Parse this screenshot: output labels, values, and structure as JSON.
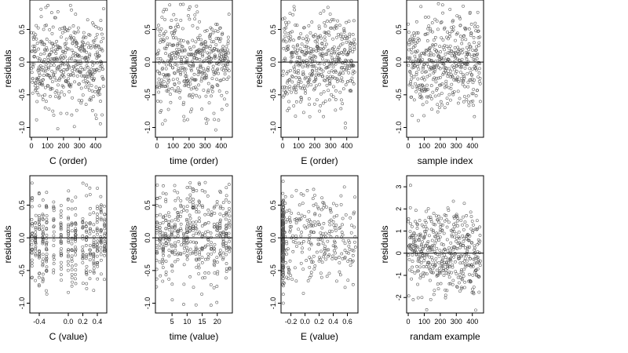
{
  "figure": {
    "layout": {
      "rows": 2,
      "cols": 4
    },
    "point_color": "#555555",
    "axis_color": "#000000"
  },
  "chart_data": [
    {
      "type": "scatter",
      "xlabel": "C (order)",
      "ylabel": "residuals",
      "xlim": [
        -10,
        470
      ],
      "ylim": [
        -1.15,
        0.95
      ],
      "xticks": [
        0,
        100,
        200,
        300,
        400
      ],
      "xtick_labels": [
        "0",
        "100",
        "200",
        "300",
        "400"
      ],
      "yticks": [
        -1.0,
        -0.5,
        0.0,
        0.5
      ],
      "ytick_labels": [
        "-1.0",
        "-0.5",
        "0.0",
        "0.5"
      ],
      "hline": 0,
      "points": {
        "n": 450,
        "x_pattern": "index",
        "x_min": 0,
        "x_max": 450,
        "y_min": -1.05,
        "y_max": 0.9,
        "y_spread": 0.35,
        "seed": 11
      }
    },
    {
      "type": "scatter",
      "xlabel": "time (order)",
      "ylabel": "residuals",
      "xlim": [
        -10,
        470
      ],
      "ylim": [
        -1.15,
        0.95
      ],
      "xticks": [
        0,
        100,
        200,
        300,
        400
      ],
      "xtick_labels": [
        "0",
        "100",
        "200",
        "300",
        "400"
      ],
      "yticks": [
        -1.0,
        -0.5,
        0.0,
        0.5
      ],
      "ytick_labels": [
        "-1.0",
        "-0.5",
        "0.0",
        "0.5"
      ],
      "hline": 0,
      "points": {
        "n": 450,
        "x_pattern": "index",
        "x_min": 0,
        "x_max": 450,
        "y_min": -1.05,
        "y_max": 0.9,
        "y_spread": 0.35,
        "seed": 23
      }
    },
    {
      "type": "scatter",
      "xlabel": "E (order)",
      "ylabel": "residuals",
      "xlim": [
        -10,
        470
      ],
      "ylim": [
        -1.15,
        0.95
      ],
      "xticks": [
        0,
        100,
        200,
        300,
        400
      ],
      "xtick_labels": [
        "0",
        "100",
        "200",
        "300",
        "400"
      ],
      "yticks": [
        -1.0,
        -0.5,
        0.0,
        0.5
      ],
      "ytick_labels": [
        "-1.0",
        "-0.5",
        "0.0",
        "0.5"
      ],
      "hline": 0,
      "points": {
        "n": 450,
        "x_pattern": "index",
        "x_min": 0,
        "x_max": 450,
        "y_min": -1.05,
        "y_max": 0.9,
        "y_spread": 0.35,
        "seed": 37
      }
    },
    {
      "type": "scatter",
      "xlabel": "sample index",
      "ylabel": "residuals",
      "xlim": [
        -10,
        470
      ],
      "ylim": [
        -1.15,
        0.95
      ],
      "xticks": [
        0,
        100,
        200,
        300,
        400
      ],
      "xtick_labels": [
        "0",
        "100",
        "200",
        "300",
        "400"
      ],
      "yticks": [
        -1.0,
        -0.5,
        0.0,
        0.5
      ],
      "ytick_labels": [
        "-1.0",
        "-0.5",
        "0.0",
        "0.5"
      ],
      "hline": 0,
      "points": {
        "n": 450,
        "x_pattern": "index",
        "x_min": 0,
        "x_max": 450,
        "y_min": -1.05,
        "y_max": 0.9,
        "y_spread": 0.35,
        "seed": 41
      }
    },
    {
      "type": "scatter",
      "xlabel": "C (value)",
      "ylabel": "residuals",
      "xlim": [
        -0.53,
        0.53
      ],
      "ylim": [
        -1.15,
        0.95
      ],
      "xticks": [
        -0.4,
        0.0,
        0.2,
        0.4
      ],
      "xtick_labels": [
        "-0.4",
        "0.0",
        "0.2",
        "0.4"
      ],
      "yticks": [
        -1.0,
        -0.5,
        0.0,
        0.5
      ],
      "ytick_labels": [
        "-1.0",
        "-0.5",
        "0.0",
        "0.5"
      ],
      "hline": 0,
      "points": {
        "n": 420,
        "x_pattern": "columns",
        "x_columns": [
          -0.5,
          -0.45,
          -0.4,
          -0.35,
          -0.3,
          -0.2,
          -0.1,
          0.0,
          0.05,
          0.1,
          0.2,
          0.25,
          0.3,
          0.35,
          0.4,
          0.45,
          0.5
        ],
        "x_jitter": 0.004,
        "y_min": -1.0,
        "y_max": 0.85,
        "y_spread": 0.35,
        "seed": 53
      }
    },
    {
      "type": "scatter",
      "xlabel": "time (value)",
      "ylabel": "residuals",
      "xlim": [
        -0.5,
        25
      ],
      "ylim": [
        -1.15,
        0.95
      ],
      "xticks": [
        5,
        10,
        15,
        20
      ],
      "xtick_labels": [
        "5",
        "10",
        "15",
        "20"
      ],
      "yticks": [
        -1.0,
        -0.5,
        0.0,
        0.5
      ],
      "ytick_labels": [
        "-1.0",
        "-0.5",
        "0.0",
        "0.5"
      ],
      "hline": 0,
      "points": {
        "n": 440,
        "x_pattern": "columns",
        "x_columns": [
          0,
          1,
          2,
          3,
          4,
          5,
          6,
          7,
          8,
          9,
          10,
          11,
          12,
          13,
          14,
          15,
          16,
          17,
          18,
          19,
          20,
          21,
          22,
          23,
          24
        ],
        "x_jitter": 0.15,
        "y_min": -1.05,
        "y_max": 0.85,
        "y_spread": 0.35,
        "seed": 67
      }
    },
    {
      "type": "scatter",
      "xlabel": "E (value)",
      "ylabel": "residuals",
      "xlim": [
        -0.34,
        0.75
      ],
      "ylim": [
        -1.15,
        0.95
      ],
      "xticks": [
        -0.2,
        0.0,
        0.2,
        0.4,
        0.6
      ],
      "xtick_labels": [
        "-0.2",
        "0.0",
        "0.2",
        "0.4",
        "0.6"
      ],
      "yticks": [
        -1.0,
        -0.5,
        0.0,
        0.5
      ],
      "ytick_labels": [
        "-1.0",
        "-0.5",
        "0.0",
        "0.5"
      ],
      "hline": 0,
      "points": {
        "n": 430,
        "x_pattern": "left_heavy",
        "x_min": -0.32,
        "x_max": 0.72,
        "x_left_cluster": -0.31,
        "left_fraction": 0.4,
        "y_min": -1.05,
        "y_max": 0.9,
        "y_spread": 0.35,
        "seed": 79
      }
    },
    {
      "type": "scatter",
      "xlabel": "randam example",
      "ylabel": "residuals",
      "xlim": [
        -10,
        470
      ],
      "ylim": [
        -2.7,
        3.5
      ],
      "xticks": [
        0,
        100,
        200,
        300,
        400
      ],
      "xtick_labels": [
        "0",
        "100",
        "200",
        "300",
        "400"
      ],
      "yticks": [
        -2,
        -1,
        0,
        1,
        2,
        3
      ],
      "ytick_labels": [
        "-2",
        "-1",
        "0",
        "1",
        "2",
        "3"
      ],
      "hline": 0,
      "points": {
        "n": 450,
        "x_pattern": "index",
        "x_min": 0,
        "x_max": 450,
        "y_min": -2.6,
        "y_max": 3.2,
        "y_spread": 1.0,
        "seed": 97
      }
    }
  ]
}
